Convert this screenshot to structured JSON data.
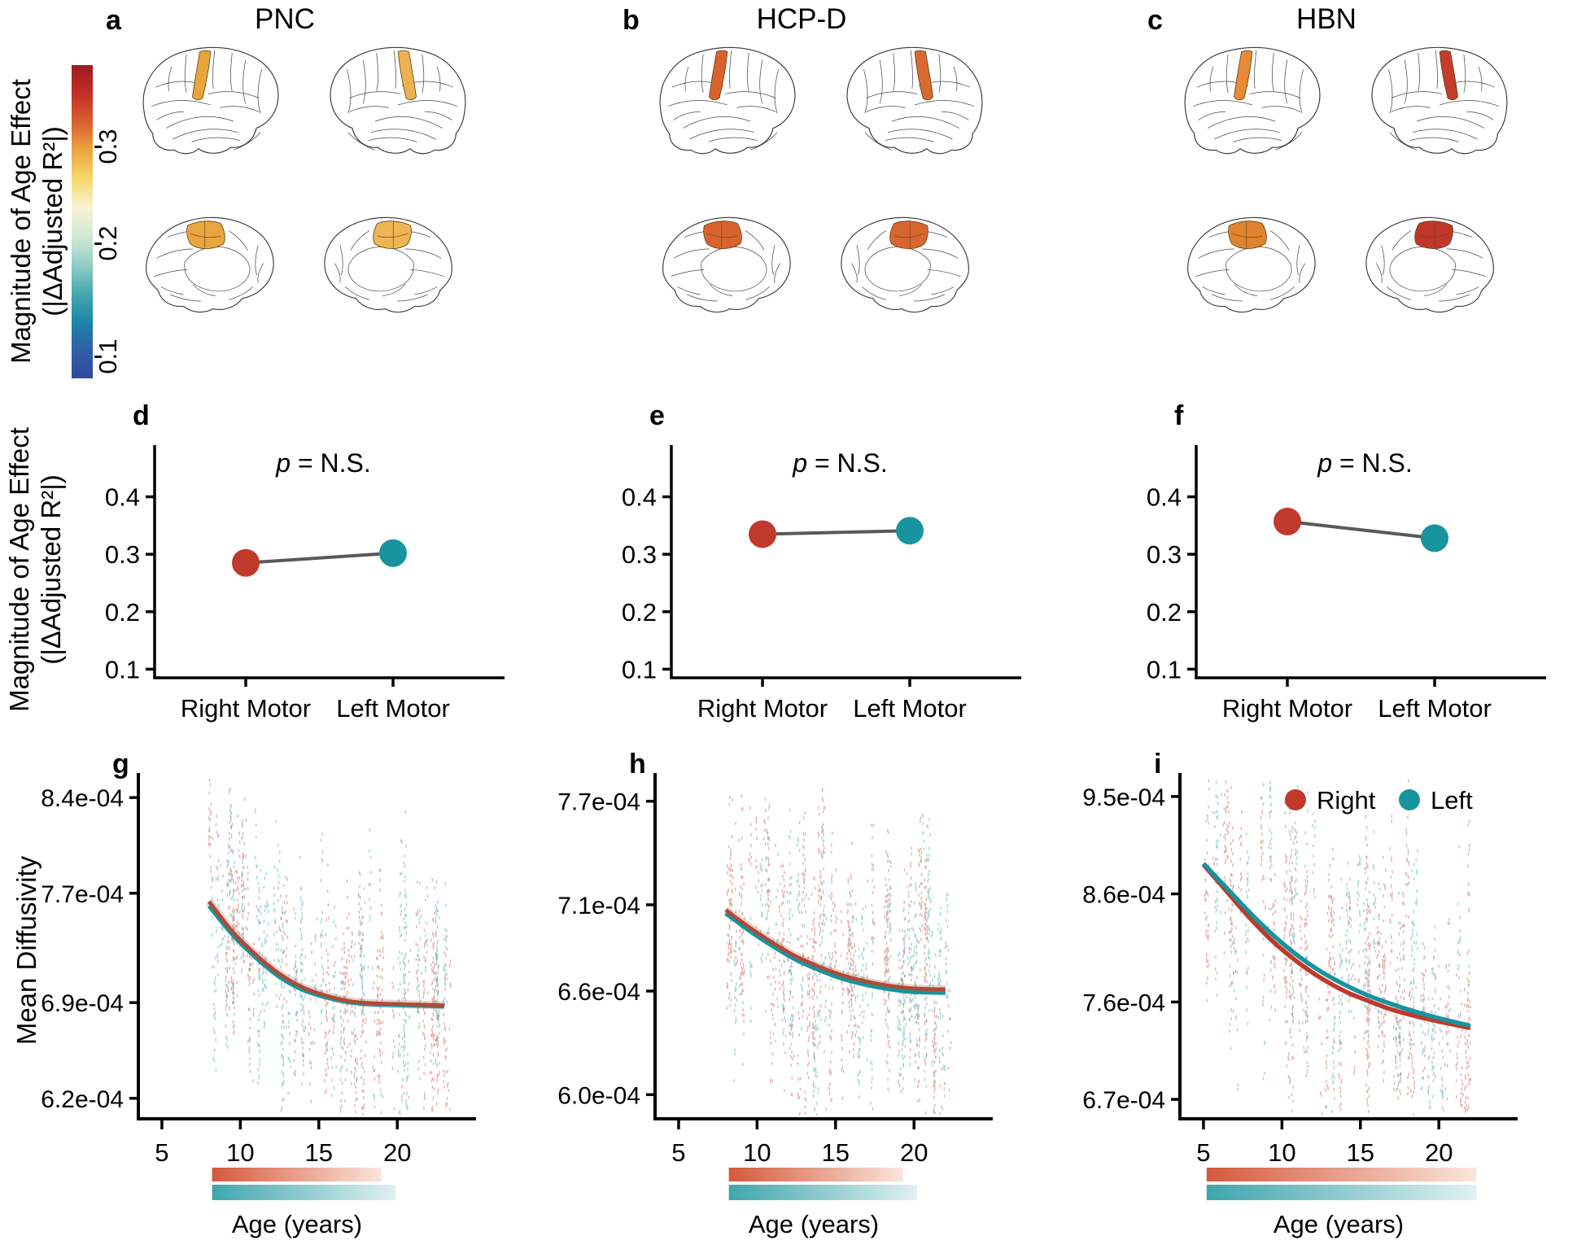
{
  "colorbar": {
    "label_lines": [
      "Magnitude of Age Effect",
      "(|ΔAdjusted R²|)"
    ],
    "ticks": [
      {
        "label": "0.3",
        "pos": 0.26
      },
      {
        "label": "0.2",
        "pos": 0.57
      },
      {
        "label": "0.1",
        "pos": 0.93
      }
    ],
    "gradient": [
      "#9c1c20",
      "#c22f27",
      "#d95f2d",
      "#eca63f",
      "#f5d96d",
      "#f8f3d2",
      "#d3e8d4",
      "#92cfc6",
      "#46aaae",
      "#1c86a8",
      "#2f5fa8",
      "#33499e"
    ]
  },
  "map_panels": [
    {
      "letter": "a",
      "title": "PNC",
      "highlight_colors": {
        "lat_l": "#e8a43d",
        "lat_r": "#ecb251",
        "med_l": "#e9a63f",
        "med_r": "#edb553"
      }
    },
    {
      "letter": "b",
      "title": "HCP-D",
      "highlight_colors": {
        "lat_l": "#d9632c",
        "lat_r": "#d96a2f",
        "med_l": "#da632d",
        "med_r": "#d9662e"
      }
    },
    {
      "letter": "c",
      "title": "HBN",
      "highlight_colors": {
        "lat_l": "#e68a36",
        "lat_r": "#c63c2a",
        "med_l": "#e0832f",
        "med_r": "#c2372a"
      }
    }
  ],
  "row2_label_lines": [
    "Magnitude of Age Effect",
    "(|ΔAdjusted R²|)"
  ],
  "row3_ylabel": "Mean Diffusivity",
  "colors": {
    "right": "#c0392b",
    "left": "#17949e",
    "connector": "#595959",
    "curve_overlap": "#b04a38"
  },
  "age_bar_colors": {
    "right": [
      "#d4593b",
      "#fbe5dc"
    ],
    "left": [
      "#3fa6ae",
      "#e0f1f1"
    ]
  },
  "chart_data": [
    {
      "id": "d",
      "type": "line",
      "panel_letter": "d",
      "dataset": "PNC",
      "annotation_p": "p",
      "annotation_rest": " = N.S.",
      "categories": [
        "Right Motor",
        "Left Motor"
      ],
      "values": [
        0.285,
        0.302
      ],
      "yticks": [
        {
          "label": "0.4",
          "value": 0.4
        },
        {
          "label": "0.3",
          "value": 0.3
        },
        {
          "label": "0.2",
          "value": 0.2
        },
        {
          "label": "0.1",
          "value": 0.1
        }
      ],
      "ylim": [
        0.085,
        0.49
      ]
    },
    {
      "id": "e",
      "type": "line",
      "panel_letter": "e",
      "dataset": "HCP-D",
      "annotation_p": "p",
      "annotation_rest": " = N.S.",
      "categories": [
        "Right Motor",
        "Left Motor"
      ],
      "values": [
        0.335,
        0.341
      ],
      "yticks": [
        {
          "label": "0.4",
          "value": 0.4
        },
        {
          "label": "0.3",
          "value": 0.3
        },
        {
          "label": "0.2",
          "value": 0.2
        },
        {
          "label": "0.1",
          "value": 0.1
        }
      ],
      "ylim": [
        0.085,
        0.49
      ]
    },
    {
      "id": "f",
      "type": "line",
      "panel_letter": "f",
      "dataset": "HBN",
      "annotation_p": "p",
      "annotation_rest": " = N.S.",
      "categories": [
        "Right Motor",
        "Left Motor"
      ],
      "values": [
        0.357,
        0.328
      ],
      "yticks": [
        {
          "label": "0.4",
          "value": 0.4
        },
        {
          "label": "0.3",
          "value": 0.3
        },
        {
          "label": "0.2",
          "value": 0.2
        },
        {
          "label": "0.1",
          "value": 0.1
        }
      ],
      "ylim": [
        0.085,
        0.49
      ]
    },
    {
      "id": "g",
      "type": "scatter",
      "panel_letter": "g",
      "dataset": "PNC",
      "xlabel": "Age (years)",
      "xticks": [
        5,
        10,
        15,
        20
      ],
      "xlim": [
        3.5,
        24.5
      ],
      "yticks": [
        {
          "label": "8.4e-04",
          "value": 0.00084
        },
        {
          "label": "7.7e-04",
          "value": 0.00077
        },
        {
          "label": "6.9e-04",
          "value": 0.00069
        },
        {
          "label": "6.2e-04",
          "value": 0.00062
        }
      ],
      "ylim": [
        0.000605,
        0.000855
      ],
      "curve_style": "overlap",
      "series": [
        {
          "name": "Right",
          "color": "#c0392b",
          "curve": [
            [
              8,
              0.000764
            ],
            [
              9.5,
              0.000742
            ],
            [
              11,
              0.000725
            ],
            [
              12.5,
              0.000711
            ],
            [
              14,
              0.000701
            ],
            [
              15.5,
              0.000695
            ],
            [
              17,
              0.000691
            ],
            [
              18.5,
              0.0006895
            ],
            [
              20,
              0.000689
            ],
            [
              23,
              0.000688
            ]
          ]
        },
        {
          "name": "Left",
          "color": "#17949e",
          "curve": [
            [
              8,
              0.000762
            ],
            [
              9.5,
              0.000741
            ],
            [
              11,
              0.000724
            ],
            [
              12.5,
              0.00071
            ],
            [
              14,
              0.0007005
            ],
            [
              15.5,
              0.000695
            ],
            [
              17,
              0.0006915
            ],
            [
              18.5,
              0.00069
            ],
            [
              20,
              0.0006895
            ],
            [
              23,
              0.0006885
            ]
          ]
        }
      ],
      "age_bars": {
        "right": [
          8.2,
          19.0
        ],
        "left": [
          8.2,
          19.9
        ]
      }
    },
    {
      "id": "h",
      "type": "scatter",
      "panel_letter": "h",
      "dataset": "HCP-D",
      "xlabel": "Age (years)",
      "xticks": [
        5,
        10,
        15,
        20
      ],
      "xlim": [
        3.5,
        24.5
      ],
      "yticks": [
        {
          "label": "7.7e-04",
          "value": 0.00077
        },
        {
          "label": "7.1e-04",
          "value": 0.00071
        },
        {
          "label": "6.6e-04",
          "value": 0.00066
        },
        {
          "label": "6.0e-04",
          "value": 0.0006
        }
      ],
      "ylim": [
        0.000586,
        0.000784
      ],
      "curve_style": "overlap",
      "series": [
        {
          "name": "Right",
          "color": "#c0392b",
          "curve": [
            [
              8,
              0.000707
            ],
            [
              9.5,
              0.000697
            ],
            [
              11,
              0.000688
            ],
            [
              12.5,
              0.00068
            ],
            [
              14,
              0.000674
            ],
            [
              15.5,
              0.000669
            ],
            [
              17,
              0.0006655
            ],
            [
              18.5,
              0.000663
            ],
            [
              20,
              0.0006615
            ],
            [
              22,
              0.000661
            ]
          ]
        },
        {
          "name": "Left",
          "color": "#17949e",
          "curve": [
            [
              8,
              0.000706
            ],
            [
              9.5,
              0.000696
            ],
            [
              11,
              0.000687
            ],
            [
              12.5,
              0.000679
            ],
            [
              14,
              0.000673
            ],
            [
              15.5,
              0.000668
            ],
            [
              17,
              0.0006645
            ],
            [
              18.5,
              0.000662
            ],
            [
              20,
              0.0006605
            ],
            [
              22,
              0.00066
            ]
          ]
        }
      ],
      "age_bars": {
        "right": [
          8.2,
          19.3
        ],
        "left": [
          8.2,
          20.2
        ]
      }
    },
    {
      "id": "i",
      "type": "scatter",
      "panel_letter": "i",
      "dataset": "HBN",
      "xlabel": "Age (years)",
      "xticks": [
        5,
        10,
        15,
        20
      ],
      "xlim": [
        3.5,
        24.5
      ],
      "yticks": [
        {
          "label": "9.5e-04",
          "value": 0.00095
        },
        {
          "label": "8.6e-04",
          "value": 0.00086
        },
        {
          "label": "7.6e-04",
          "value": 0.00076
        },
        {
          "label": "6.7e-04",
          "value": 0.00067
        }
      ],
      "ylim": [
        0.000652,
        0.000968
      ],
      "curve_style": "separate",
      "legend": [
        {
          "label": "Right",
          "color": "#c0392b"
        },
        {
          "label": "Left",
          "color": "#17949e"
        }
      ],
      "series": [
        {
          "name": "Right",
          "color": "#c0392b",
          "curve": [
            [
              5,
              0.000887
            ],
            [
              6.5,
              0.000862
            ],
            [
              8,
              0.000837
            ],
            [
              9.5,
              0.000815
            ],
            [
              11,
              0.000797
            ],
            [
              12.5,
              0.000782
            ],
            [
              14,
              0.00077
            ],
            [
              15.5,
              0.000761
            ],
            [
              17,
              0.000753
            ],
            [
              18.5,
              0.000747
            ],
            [
              20,
              0.000742
            ],
            [
              22,
              0.000736
            ]
          ]
        },
        {
          "name": "Left",
          "color": "#17949e",
          "curve": [
            [
              5,
              0.000888
            ],
            [
              6.5,
              0.000865
            ],
            [
              8,
              0.000842
            ],
            [
              9.5,
              0.000821
            ],
            [
              11,
              0.000803
            ],
            [
              12.5,
              0.000788
            ],
            [
              14,
              0.000776
            ],
            [
              15.5,
              0.000766
            ],
            [
              17,
              0.000758
            ],
            [
              18.5,
              0.000751
            ],
            [
              20,
              0.000745
            ],
            [
              22,
              0.000738
            ]
          ]
        }
      ],
      "age_bars": {
        "right": [
          5.2,
          22.4
        ],
        "left": [
          5.2,
          22.4
        ]
      }
    }
  ]
}
